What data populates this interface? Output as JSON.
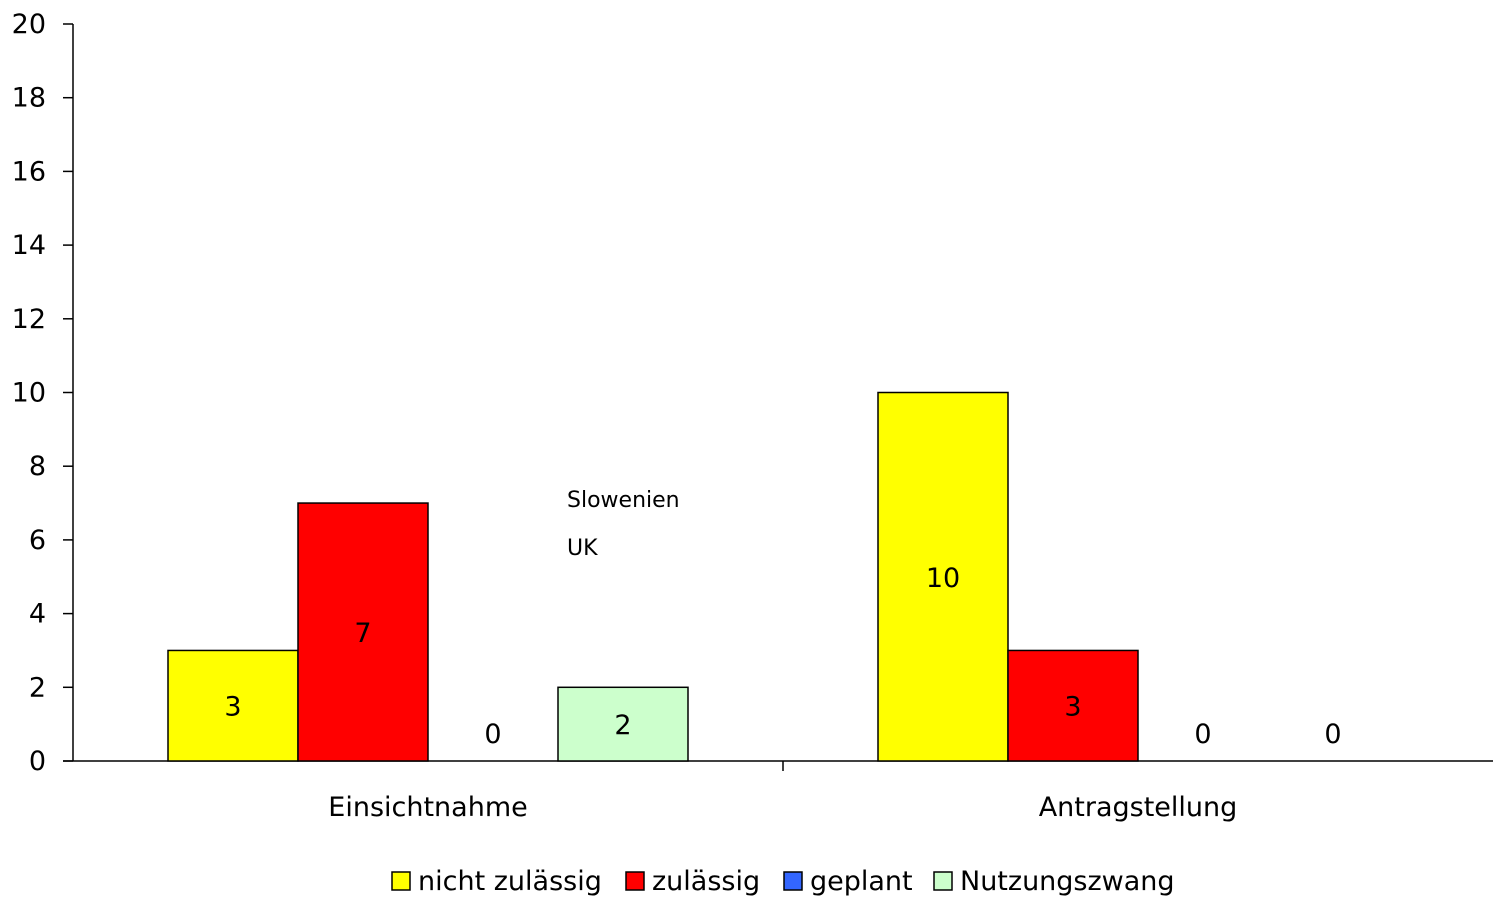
{
  "chart_data": {
    "type": "bar",
    "title": "",
    "xlabel": "",
    "ylabel": "",
    "ylim": [
      0,
      20
    ],
    "yticks": [
      0,
      2,
      4,
      6,
      8,
      10,
      12,
      14,
      16,
      18,
      20
    ],
    "categories": [
      "Einsichtnahme",
      "Antragstellung"
    ],
    "series": [
      {
        "name": "nicht zulässig",
        "color": "#ffff00",
        "values": [
          3,
          10
        ]
      },
      {
        "name": "zulässig",
        "color": "#ff0000",
        "values": [
          7,
          3
        ]
      },
      {
        "name": "geplant",
        "color": "#3366ff",
        "values": [
          0,
          0
        ]
      },
      {
        "name": "Nutzungszwang",
        "color": "#ccffcc",
        "values": [
          2,
          0
        ]
      }
    ],
    "annotations": [
      "Slowenien",
      "UK"
    ],
    "legend_position": "bottom",
    "grid": false
  }
}
